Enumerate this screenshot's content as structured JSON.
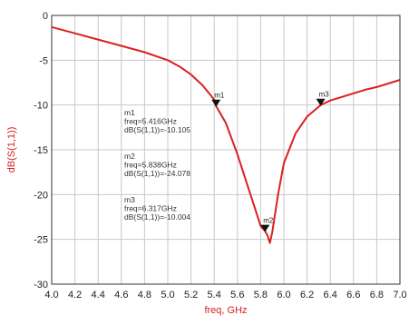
{
  "colors": {
    "trace": "#dd1f1f",
    "axis_title": "#d42020",
    "grid": "#c8c8c8",
    "frame": "#333333",
    "marker": "#111111"
  },
  "chart_data": {
    "type": "line",
    "xlabel": "freq, GHz",
    "ylabel": "dB(S(1,1))",
    "xlim": [
      4.0,
      7.0
    ],
    "ylim": [
      -30,
      0
    ],
    "x_ticks": [
      "4.0",
      "4.2",
      "4.4",
      "4.6",
      "4.8",
      "5.0",
      "5.2",
      "5.4",
      "5.6",
      "5.8",
      "6.0",
      "6.2",
      "6.4",
      "6.6",
      "6.8",
      "7.0"
    ],
    "y_ticks": [
      "0",
      "-5",
      "-10",
      "-15",
      "-20",
      "-25",
      "-30"
    ],
    "grid": true,
    "series": [
      {
        "x": [
          4.0,
          4.2,
          4.4,
          4.6,
          4.8,
          5.0,
          5.1,
          5.2,
          5.3,
          5.4,
          5.416,
          5.5,
          5.6,
          5.7,
          5.75,
          5.8,
          5.838,
          5.86,
          5.88,
          5.9,
          5.95,
          6.0,
          6.1,
          6.2,
          6.3,
          6.317,
          6.4,
          6.5,
          6.6,
          6.7,
          6.8,
          6.9,
          7.0
        ],
        "y": [
          -1.3,
          -2.0,
          -2.7,
          -3.4,
          -4.1,
          -5.0,
          -5.7,
          -6.6,
          -7.8,
          -9.4,
          -10.105,
          -12.0,
          -15.5,
          -19.5,
          -21.5,
          -23.5,
          -24.078,
          -24.6,
          -25.4,
          -24.2,
          -20.0,
          -16.5,
          -13.2,
          -11.3,
          -10.2,
          -10.004,
          -9.5,
          -9.1,
          -8.7,
          -8.3,
          -8.0,
          -7.6,
          -7.2
        ]
      }
    ],
    "markers": [
      {
        "id": "m1",
        "x": 5.416,
        "y": -10.105,
        "lines": [
          "m1",
          "freq=5.416GHz",
          "dB(S(1,1))=-10.105"
        ]
      },
      {
        "id": "m2",
        "x": 5.838,
        "y": -24.078,
        "lines": [
          "m2",
          "freq=5.838GHz",
          "dB(S(1,1))=-24.078"
        ]
      },
      {
        "id": "m3",
        "x": 6.317,
        "y": -10.004,
        "lines": [
          "m3",
          "freq=6.317GHz",
          "dB(S(1,1))=-10.004"
        ]
      }
    ]
  }
}
